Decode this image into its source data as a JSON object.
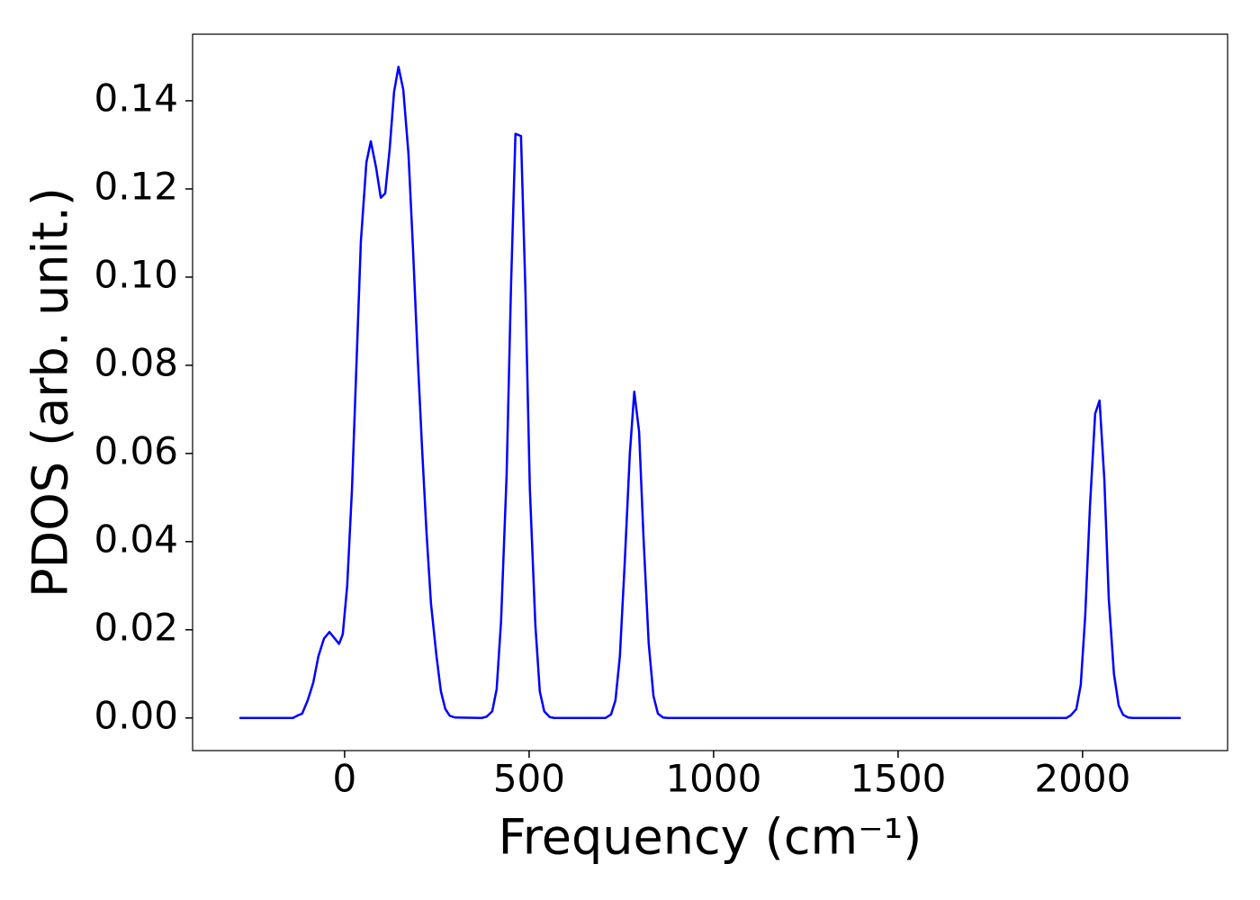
{
  "chart_data": {
    "type": "line",
    "xlabel": "Frequency (cm⁻¹)",
    "ylabel": "PDOS (arb. unit.)",
    "xlim": [
      -412,
      2393
    ],
    "ylim": [
      -0.0074,
      0.1551
    ],
    "xticks": [
      0,
      500,
      1000,
      1500,
      2000
    ],
    "yticks": [
      {
        "value": 0,
        "label": "0.00"
      },
      {
        "value": 0.02,
        "label": "0.02"
      },
      {
        "value": 0.04,
        "label": "0.04"
      },
      {
        "value": 0.06,
        "label": "0.06"
      },
      {
        "value": 0.08,
        "label": "0.08"
      },
      {
        "value": 0.1,
        "label": "0.10"
      },
      {
        "value": 0.12,
        "label": "0.12"
      },
      {
        "value": 0.14,
        "label": "0.14"
      }
    ],
    "grid": false,
    "series": [
      {
        "color": "#0000ff",
        "x": [
          -285,
          -140,
          -129,
          -115,
          -100,
          -85,
          -71,
          -56,
          -41,
          -15,
          -5,
          7,
          20,
          32,
          44,
          59,
          71,
          85,
          98,
          110,
          122,
          134,
          146,
          159,
          173,
          185,
          198,
          210,
          222,
          234,
          249,
          261,
          273,
          285,
          300,
          371,
          385,
          400,
          412,
          424,
          439,
          451,
          463,
          478,
          490,
          502,
          517,
          529,
          541,
          556,
          568,
          707,
          722,
          734,
          746,
          759,
          773,
          785,
          798,
          810,
          824,
          837,
          849,
          863,
          876,
          1956,
          1968,
          1983,
          1995,
          2007,
          2020,
          2034,
          2046,
          2059,
          2071,
          2085,
          2098,
          2110,
          2124,
          2137,
          2266
        ],
        "values": [
          0,
          0,
          0.0005,
          0.001,
          0.004,
          0.008,
          0.014,
          0.018,
          0.0195,
          0.0168,
          0.019,
          0.03,
          0.052,
          0.08,
          0.108,
          0.126,
          0.1308,
          0.125,
          0.118,
          0.119,
          0.129,
          0.142,
          0.1477,
          0.1425,
          0.128,
          0.107,
          0.082,
          0.061,
          0.042,
          0.026,
          0.014,
          0.006,
          0.002,
          0.0005,
          0.0001,
          0,
          0.0003,
          0.0015,
          0.0065,
          0.022,
          0.055,
          0.098,
          0.1325,
          0.132,
          0.097,
          0.052,
          0.021,
          0.006,
          0.0015,
          0.0002,
          0,
          0,
          0.0008,
          0.004,
          0.014,
          0.035,
          0.06,
          0.074,
          0.065,
          0.041,
          0.017,
          0.005,
          0.001,
          0.0001,
          0,
          0,
          0.0006,
          0.002,
          0.0075,
          0.023,
          0.048,
          0.069,
          0.072,
          0.054,
          0.027,
          0.01,
          0.0028,
          0.0007,
          0.0001,
          0,
          0
        ]
      }
    ]
  }
}
